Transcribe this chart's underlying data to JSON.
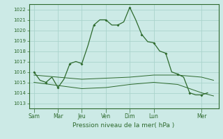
{
  "title": "Pression niveau de la mer( hPa )",
  "background_color": "#cceae6",
  "grid_color": "#aad4cc",
  "line_color": "#2d6a2d",
  "ylim": [
    1012.5,
    1022.5
  ],
  "yticks": [
    1013,
    1014,
    1015,
    1016,
    1017,
    1018,
    1019,
    1020,
    1021,
    1022
  ],
  "xtick_labels": [
    "Sam",
    "Mar",
    "Jeu",
    "Ven",
    "Dim",
    "Lun",
    "Mer"
  ],
  "xtick_positions": [
    0,
    24,
    48,
    72,
    96,
    120,
    168
  ],
  "xlim": [
    -5,
    185
  ],
  "series1_x": [
    0,
    6,
    12,
    18,
    24,
    30,
    36,
    42,
    48,
    54,
    60,
    66,
    72,
    78,
    84,
    90,
    96,
    102,
    108,
    114,
    120,
    126,
    132,
    138,
    144,
    150,
    156,
    162,
    168,
    174
  ],
  "series1_y": [
    1016.0,
    1015.2,
    1015.0,
    1015.5,
    1014.5,
    1015.3,
    1016.8,
    1017.0,
    1016.8,
    1018.5,
    1020.5,
    1021.0,
    1021.0,
    1020.5,
    1020.5,
    1020.8,
    1022.2,
    1021.0,
    1019.6,
    1018.9,
    1018.8,
    1018.0,
    1017.8,
    1016.0,
    1015.8,
    1015.5,
    1014.0,
    1013.8,
    1013.8,
    1014.0
  ],
  "markers_x": [
    0,
    12,
    24,
    36,
    48,
    60,
    72,
    84,
    96,
    108,
    120,
    132,
    144,
    156,
    168
  ],
  "markers_y": [
    1016.0,
    1015.0,
    1014.5,
    1016.8,
    1016.8,
    1020.5,
    1021.0,
    1020.5,
    1022.2,
    1019.6,
    1018.8,
    1017.8,
    1015.8,
    1014.0,
    1013.8
  ],
  "series2_x": [
    0,
    24,
    48,
    72,
    96,
    120,
    144,
    168,
    180
  ],
  "series2_y": [
    1015.7,
    1015.5,
    1015.3,
    1015.4,
    1015.5,
    1015.7,
    1015.7,
    1015.5,
    1015.2
  ],
  "series3_x": [
    0,
    24,
    48,
    72,
    96,
    120,
    144,
    168,
    180
  ],
  "series3_y": [
    1015.0,
    1014.7,
    1014.4,
    1014.5,
    1014.8,
    1015.0,
    1014.8,
    1014.0,
    1013.7
  ]
}
